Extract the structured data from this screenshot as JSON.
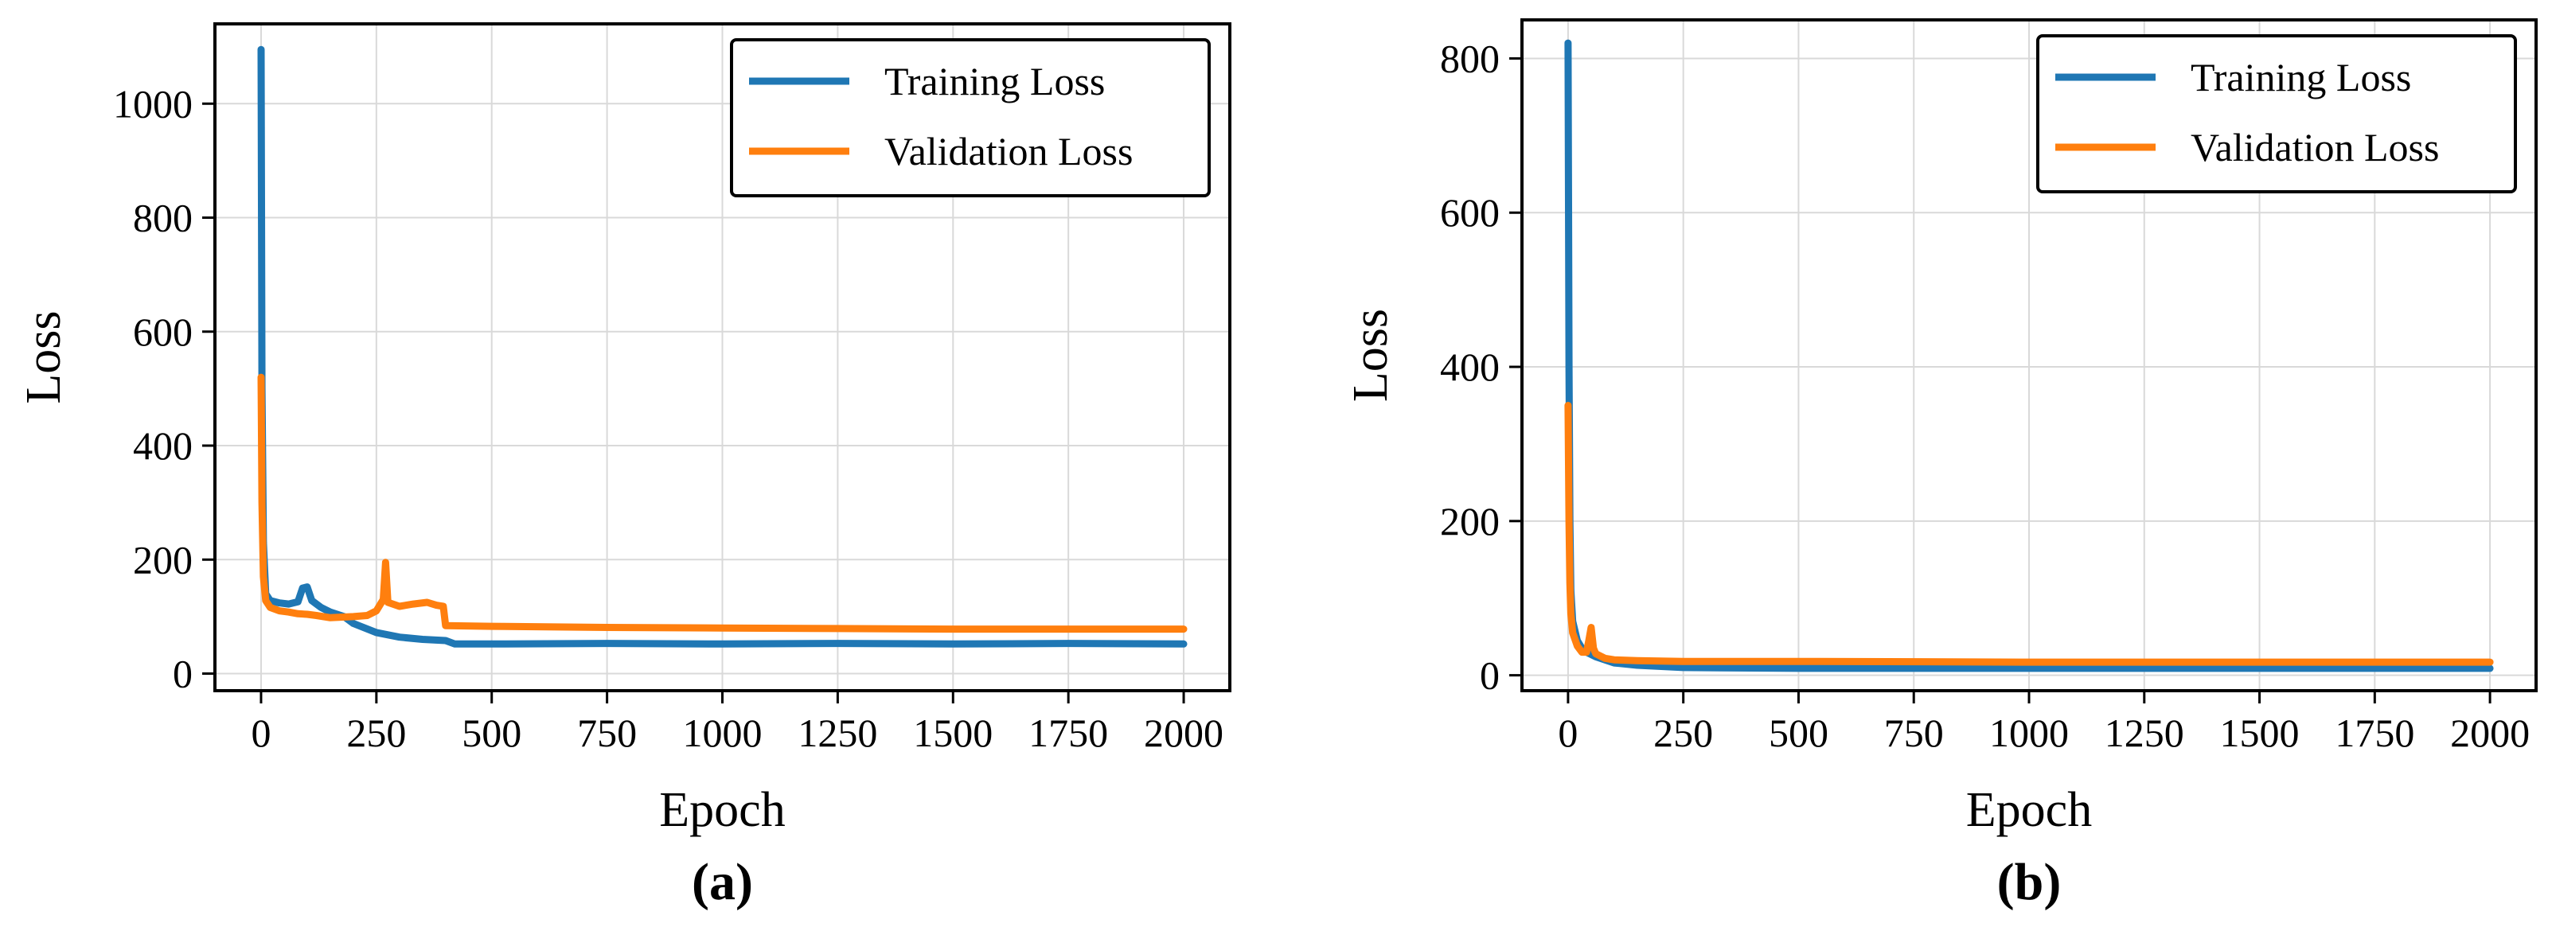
{
  "colors": {
    "training": "#1f77b4",
    "validation": "#ff7f0e",
    "grid": "#d9d9d9"
  },
  "chart_data": [
    {
      "type": "line",
      "panel_label": "(a)",
      "xlabel": "Epoch",
      "ylabel": "Loss",
      "xlim": [
        -100,
        2100
      ],
      "ylim": [
        -30,
        1140
      ],
      "xticks": [
        0,
        250,
        500,
        750,
        1000,
        1250,
        1500,
        1750,
        2000
      ],
      "yticks": [
        0,
        200,
        400,
        600,
        800,
        1000
      ],
      "grid": true,
      "legend_position": "top-right",
      "series": [
        {
          "name": "Training Loss",
          "x": [
            0,
            2,
            5,
            10,
            20,
            40,
            60,
            80,
            90,
            100,
            110,
            130,
            150,
            180,
            200,
            250,
            300,
            350,
            400,
            420,
            500,
            750,
            1000,
            1250,
            1500,
            1750,
            2000
          ],
          "y": [
            1095,
            500,
            230,
            140,
            128,
            124,
            122,
            126,
            150,
            152,
            128,
            116,
            108,
            100,
            88,
            72,
            64,
            60,
            58,
            52,
            52,
            53,
            52,
            53,
            52,
            53,
            52
          ]
        },
        {
          "name": "Validation Loss",
          "x": [
            0,
            2,
            5,
            10,
            20,
            40,
            60,
            80,
            100,
            120,
            150,
            200,
            230,
            250,
            265,
            270,
            275,
            300,
            330,
            360,
            380,
            395,
            400,
            500,
            750,
            1000,
            1250,
            1500,
            1750,
            2000
          ],
          "y": [
            520,
            300,
            170,
            128,
            116,
            110,
            108,
            105,
            104,
            102,
            98,
            100,
            102,
            110,
            130,
            195,
            125,
            118,
            122,
            125,
            120,
            118,
            84,
            83,
            81,
            80,
            79,
            78,
            78,
            78
          ]
        }
      ]
    },
    {
      "type": "line",
      "panel_label": "(b)",
      "xlabel": "Epoch",
      "ylabel": "Loss",
      "xlim": [
        -100,
        2100
      ],
      "ylim": [
        -20,
        850
      ],
      "xticks": [
        0,
        250,
        500,
        750,
        1000,
        1250,
        1500,
        1750,
        2000
      ],
      "yticks": [
        0,
        200,
        400,
        600,
        800
      ],
      "grid": true,
      "legend_position": "top-right",
      "series": [
        {
          "name": "Training Loss",
          "x": [
            0,
            2,
            4,
            6,
            10,
            20,
            30,
            40,
            60,
            80,
            100,
            150,
            250,
            500,
            1000,
            1500,
            2000
          ],
          "y": [
            820,
            400,
            200,
            110,
            70,
            45,
            35,
            30,
            24,
            20,
            16,
            13,
            10,
            9,
            9,
            9,
            9
          ]
        },
        {
          "name": "Validation Loss",
          "x": [
            0,
            2,
            4,
            6,
            10,
            20,
            30,
            40,
            45,
            50,
            55,
            60,
            80,
            100,
            150,
            250,
            500,
            1000,
            1500,
            2000
          ],
          "y": [
            350,
            200,
            120,
            80,
            55,
            38,
            30,
            30,
            45,
            62,
            35,
            28,
            22,
            20,
            19,
            18,
            18,
            17,
            17,
            17
          ]
        }
      ]
    }
  ]
}
